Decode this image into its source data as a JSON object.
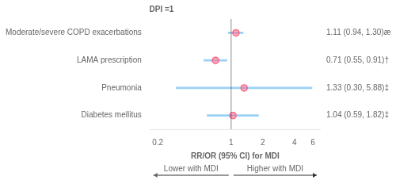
{
  "chart_data": {
    "type": "forest",
    "title": "DPI =1",
    "xlabel": "RR/OR (95% CI) for MDI",
    "categories": [
      "Moderate/severe COPD exacerbations",
      "LAMA prescription",
      "Pneumonia",
      "Diabetes mellitus"
    ],
    "values": [
      1.11,
      0.71,
      1.33,
      1.04
    ],
    "ci_low": [
      0.94,
      0.55,
      0.3,
      0.59
    ],
    "ci_high": [
      1.3,
      0.91,
      5.88,
      1.82
    ],
    "value_labels": [
      "1.11 (0.94, 1.30)æ",
      "0.71 (0.55, 0.91)†",
      "1.33 (0.30, 5.88)‡",
      "1.04 (0.59, 1.82)‡"
    ],
    "data_labels": true,
    "log": "x",
    "xlim": [
      0.17,
      7.0
    ],
    "xticks": [
      0.2,
      1,
      2,
      4,
      6
    ],
    "grid": false,
    "ref_line": 1,
    "annotations": [
      "Lower with MDI",
      "Higher with MDI"
    ]
  }
}
